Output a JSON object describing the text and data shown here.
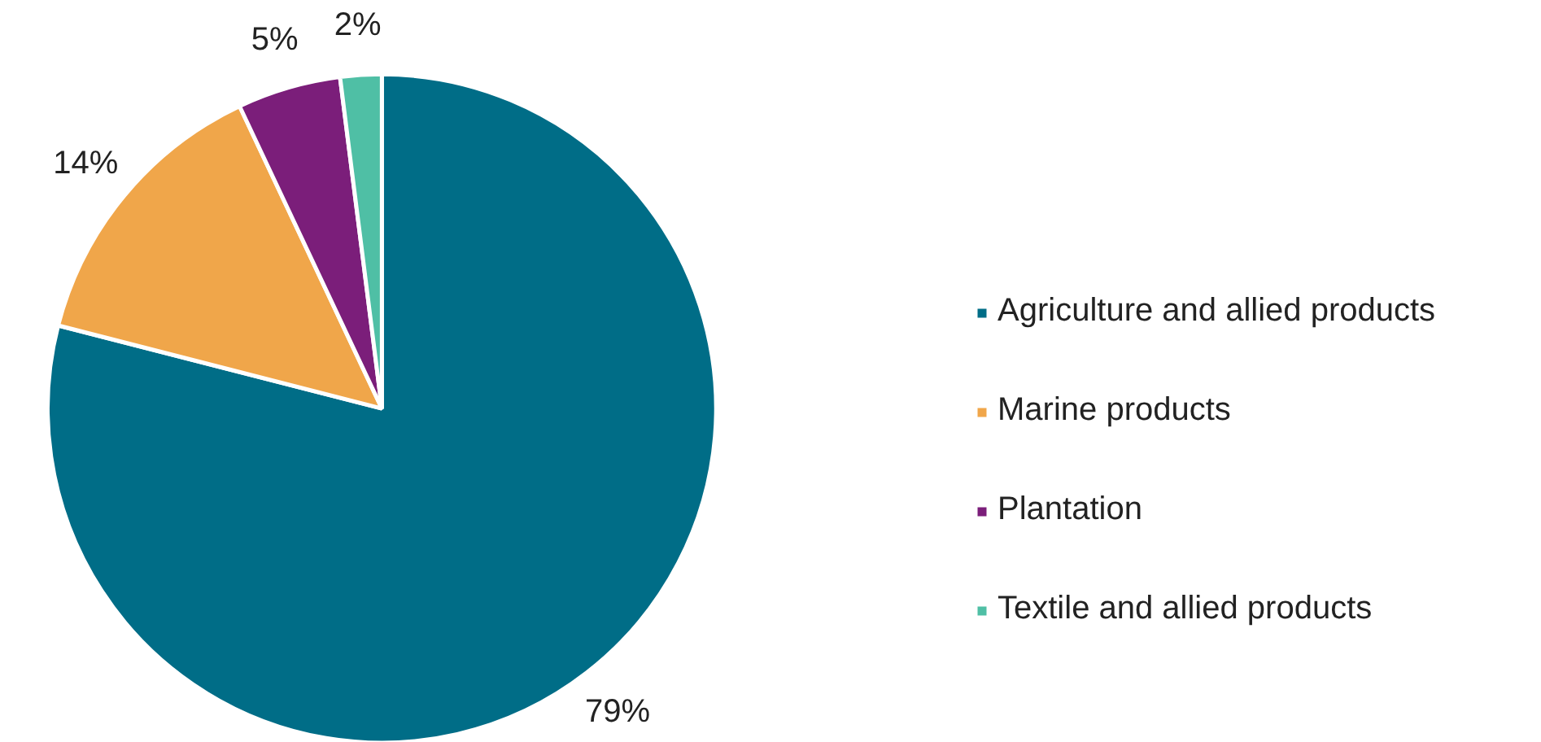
{
  "chart_data": {
    "type": "pie",
    "categories": [
      "Agriculture and allied products",
      "Marine products",
      "Plantation",
      "Textile and allied products"
    ],
    "values": [
      79,
      14,
      5,
      2
    ],
    "colors": [
      "#006d87",
      "#f0a64a",
      "#7b1e7a",
      "#4fbfa5"
    ],
    "value_labels": [
      "79%",
      "14%",
      "5%",
      "2%"
    ],
    "legend": "right"
  }
}
